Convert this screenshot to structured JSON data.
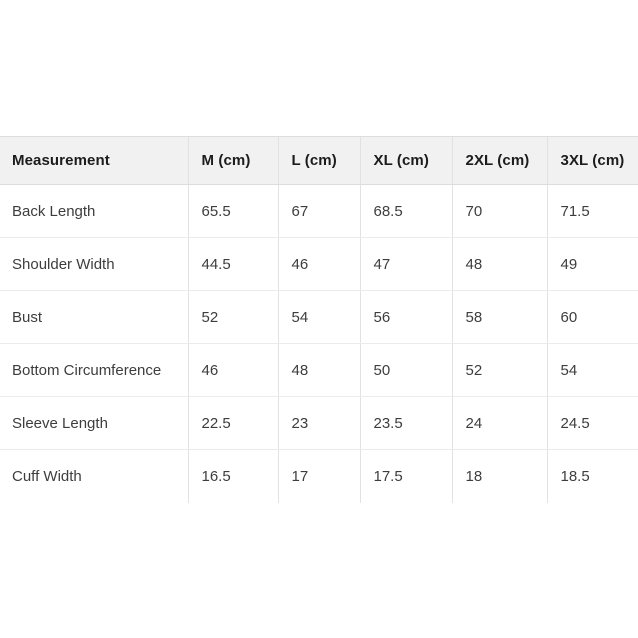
{
  "theme": {
    "header_bg": "#f1f1f1",
    "header_border": "#dddddd",
    "column_divider": "#e2e2e2",
    "row_border": "#ececec",
    "header_text": "#1c1c1c",
    "body_text": "#3d3d3d",
    "page_bg": "#ffffff"
  },
  "size_chart": {
    "columns": [
      "Measurement",
      "M (cm)",
      "L (cm)",
      "XL (cm)",
      "2XL (cm)",
      "3XL (cm)"
    ],
    "rows": [
      {
        "label": "Back Length",
        "values": [
          "65.5",
          "67",
          "68.5",
          "70",
          "71.5"
        ]
      },
      {
        "label": "Shoulder Width",
        "values": [
          "44.5",
          "46",
          "47",
          "48",
          "49"
        ]
      },
      {
        "label": "Bust",
        "values": [
          "52",
          "54",
          "56",
          "58",
          "60"
        ]
      },
      {
        "label": "Bottom Circumference",
        "values": [
          "46",
          "48",
          "50",
          "52",
          "54"
        ]
      },
      {
        "label": "Sleeve Length",
        "values": [
          "22.5",
          "23",
          "23.5",
          "24",
          "24.5"
        ]
      },
      {
        "label": "Cuff Width",
        "values": [
          "16.5",
          "17",
          "17.5",
          "18",
          "18.5"
        ]
      }
    ]
  }
}
